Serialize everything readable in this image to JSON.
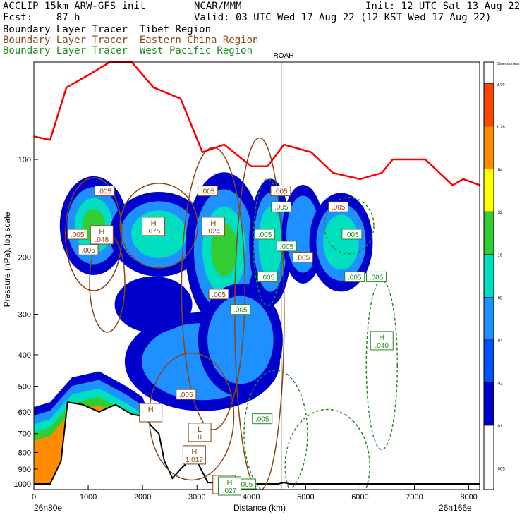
{
  "header": {
    "model": "ACCLIP 15km ARW-GFS init",
    "center": "NCAR/MMM",
    "init": "Init: 12 UTC Sat 13 Aug 22",
    "forecast": "Fcst:    87 h",
    "valid": "Valid: 03 UTC Wed 17 Aug 22 (12 KST Wed 17 Aug 22)"
  },
  "legend": [
    {
      "label": "Boundary Layer Tracer  Tibet Region",
      "color": "#000000"
    },
    {
      "label": "Boundary Layer Tracer  Eastern China Region",
      "color": "#8b4513"
    },
    {
      "label": "Boundary Layer Tracer  West Pacific Region",
      "color": "#228b22"
    }
  ],
  "station_label": "ROAH",
  "colorbar": {
    "top_label": "Dimensionless",
    "levels": [
      "2.56",
      "1.28",
      ".64",
      ".32",
      ".16",
      ".08",
      ".04",
      ".02",
      ".01",
      ".005"
    ],
    "colors": [
      "#ff4500",
      "#ff8c00",
      "#ffff00",
      "#32cd32",
      "#00e0c0",
      "#1e90ff",
      "#0050ff",
      "#0000cd",
      "#ffffff"
    ]
  },
  "chart_data": {
    "type": "area",
    "title": "",
    "xlabel": "Distance (km)",
    "ylabel": "Pressure (hPa), log scale",
    "xlim": [
      0,
      8200
    ],
    "ylim": [
      1050,
      40
    ],
    "y_scale": "log",
    "x_ticks": [
      "0",
      "1000",
      "2000",
      "3000",
      "4000",
      "5000",
      "6000",
      "7000",
      "8000"
    ],
    "y_ticks": [
      "100",
      "200",
      "300",
      "400",
      "500",
      "600",
      "700",
      "800",
      "900",
      "1000"
    ],
    "x_endpoints": [
      "26n80e",
      "26n166e"
    ],
    "station_x": 4550,
    "contour_labels": [
      {
        "text": ".005",
        "x": 1300,
        "p": 125,
        "color": "#8b4513"
      },
      {
        "text": ".005",
        "x": 3200,
        "p": 125,
        "color": "#8b4513"
      },
      {
        "text": ".005",
        "x": 4540,
        "p": 125,
        "color": "#8b4513"
      },
      {
        "text": ".005",
        "x": 5600,
        "p": 140,
        "color": "#8b4513"
      },
      {
        "text": ".005",
        "x": 800,
        "p": 170,
        "color": "#8b4513"
      },
      {
        "text": ".005",
        "x": 1000,
        "p": 190,
        "color": "#8b4513"
      },
      {
        "text": ".005",
        "x": 3400,
        "p": 260,
        "color": "#8b4513"
      },
      {
        "text": ".005",
        "x": 4950,
        "p": 200,
        "color": "#8b4513"
      },
      {
        "text": ".005",
        "x": 2800,
        "p": 530,
        "color": "#8b4513"
      },
      {
        "text": ".005",
        "x": 3800,
        "p": 1000,
        "color": "#8b4513"
      },
      {
        "text": ".005",
        "x": 4550,
        "p": 140,
        "color": "#228b22"
      },
      {
        "text": ".005",
        "x": 4250,
        "p": 170,
        "color": "#228b22"
      },
      {
        "text": ".005",
        "x": 5850,
        "p": 170,
        "color": "#228b22"
      },
      {
        "text": ".005",
        "x": 4300,
        "p": 230,
        "color": "#228b22"
      },
      {
        "text": ".005",
        "x": 3800,
        "p": 290,
        "color": "#228b22"
      },
      {
        "text": ".005",
        "x": 6300,
        "p": 230,
        "color": "#228b22"
      },
      {
        "text": ".005",
        "x": 4200,
        "p": 630,
        "color": "#228b22"
      },
      {
        "text": ".005",
        "x": 5900,
        "p": 230,
        "color": "#228b22"
      },
      {
        "text": ".005",
        "x": 4650,
        "p": 185,
        "color": "#228b22"
      },
      {
        "text": ".005",
        "x": 3900,
        "p": 1000,
        "color": "#228b22"
      }
    ],
    "extrema_labels": [
      {
        "letter": "H",
        "value": ".048",
        "x": 1250,
        "p": 170,
        "color": "#8b4513"
      },
      {
        "letter": "H",
        "value": ".075",
        "x": 2200,
        "p": 160,
        "color": "#8b4513"
      },
      {
        "letter": "H",
        "value": ".024",
        "x": 3300,
        "p": 160,
        "color": "#8b4513"
      },
      {
        "letter": "H",
        "value": "",
        "x": 2150,
        "p": 600,
        "color": "#8b4513"
      },
      {
        "letter": "L",
        "value": "0",
        "x": 3050,
        "p": 690,
        "color": "#8b4513"
      },
      {
        "letter": "H",
        "value": "1.017",
        "x": 2950,
        "p": 810,
        "color": "#8b4513"
      },
      {
        "letter": "H",
        "value": "",
        "x": 3500,
        "p": 1000,
        "color": "#8b4513"
      },
      {
        "letter": "H",
        "value": ".040",
        "x": 6400,
        "p": 360,
        "color": "#228b22"
      },
      {
        "letter": "H",
        "value": ".027",
        "x": 3600,
        "p": 1010,
        "color": "#228b22"
      }
    ]
  }
}
